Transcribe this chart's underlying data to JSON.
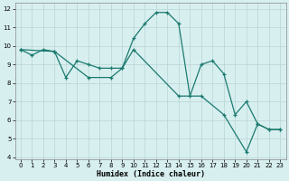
{
  "xlabel": "Humidex (Indice chaleur)",
  "bg_color": "#d8eff0",
  "grid_color": "#b8d4d4",
  "line_color": "#1a7a6e",
  "line1_x": [
    0,
    1,
    2,
    3,
    4,
    5,
    6,
    7,
    8,
    9,
    10,
    11,
    12,
    13,
    14,
    15,
    16,
    17,
    18,
    19,
    20,
    21,
    22,
    23
  ],
  "line1_y": [
    9.8,
    9.5,
    9.8,
    9.7,
    8.3,
    9.2,
    9.0,
    8.8,
    8.8,
    8.8,
    10.4,
    11.2,
    11.8,
    11.8,
    11.2,
    7.3,
    9.0,
    9.2,
    8.5,
    6.3,
    7.0,
    5.8,
    5.5,
    5.5
  ],
  "line2_x": [
    0,
    3,
    6,
    8,
    9,
    10,
    14,
    16,
    18,
    20,
    21,
    22,
    23
  ],
  "line2_y": [
    9.8,
    9.7,
    8.3,
    8.3,
    8.8,
    9.8,
    7.3,
    7.3,
    6.3,
    4.3,
    5.8,
    5.5,
    5.5
  ],
  "xlim": [
    0,
    23
  ],
  "ylim": [
    4,
    12
  ],
  "yticks": [
    4,
    5,
    6,
    7,
    8,
    9,
    10,
    11,
    12
  ],
  "xticks": [
    0,
    1,
    2,
    3,
    4,
    5,
    6,
    7,
    8,
    9,
    10,
    11,
    12,
    13,
    14,
    15,
    16,
    17,
    18,
    19,
    20,
    21,
    22,
    23
  ]
}
